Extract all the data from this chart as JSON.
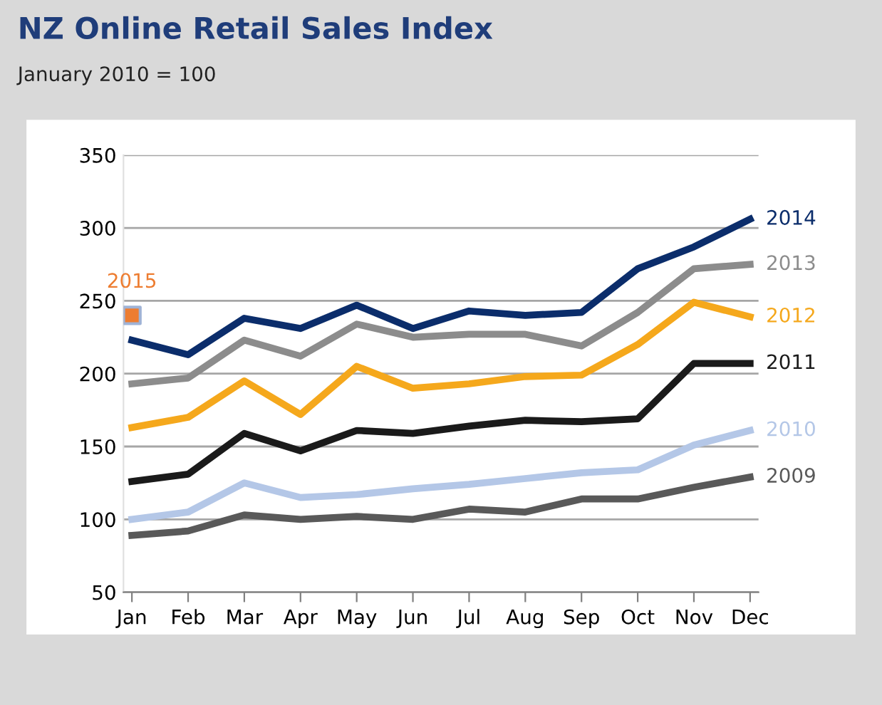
{
  "chart_data": {
    "type": "line",
    "title": "NZ Online Retail Sales Index",
    "subtitle": "January 2010 = 100",
    "categories": [
      "Jan",
      "Feb",
      "Mar",
      "Apr",
      "May",
      "Jun",
      "Jul",
      "Aug",
      "Sep",
      "Oct",
      "Nov",
      "Dec"
    ],
    "series": [
      {
        "name": "2009",
        "color": "#595959",
        "values": [
          89,
          92,
          103,
          100,
          102,
          100,
          107,
          105,
          114,
          114,
          122,
          129
        ]
      },
      {
        "name": "2010",
        "color": "#b4c7e7",
        "values": [
          100,
          105,
          125,
          115,
          117,
          121,
          124,
          128,
          132,
          134,
          151,
          161
        ]
      },
      {
        "name": "2011",
        "color": "#1a1a1a",
        "values": [
          126,
          131,
          159,
          147,
          161,
          159,
          164,
          168,
          167,
          169,
          207,
          207
        ]
      },
      {
        "name": "2012",
        "color": "#f5a81c",
        "values": [
          163,
          170,
          195,
          172,
          205,
          190,
          193,
          198,
          199,
          220,
          249,
          239
        ]
      },
      {
        "name": "2013",
        "color": "#8c8c8c",
        "values": [
          193,
          197,
          223,
          212,
          234,
          225,
          227,
          227,
          219,
          242,
          272,
          275
        ]
      },
      {
        "name": "2014",
        "color": "#0b2d6b",
        "values": [
          223,
          213,
          238,
          231,
          247,
          231,
          243,
          240,
          242,
          272,
          287,
          306
        ]
      },
      {
        "name": "2015",
        "color": "#ed7d31",
        "type": "scatter",
        "marker": "square",
        "values": [
          240,
          null,
          null,
          null,
          null,
          null,
          null,
          null,
          null,
          null,
          null,
          null
        ]
      }
    ],
    "ylim": [
      50,
      350
    ],
    "yticks": [
      50,
      100,
      150,
      200,
      250,
      300,
      350
    ],
    "grid": "y",
    "legend": false,
    "marker": "none",
    "line_style": "solid"
  }
}
